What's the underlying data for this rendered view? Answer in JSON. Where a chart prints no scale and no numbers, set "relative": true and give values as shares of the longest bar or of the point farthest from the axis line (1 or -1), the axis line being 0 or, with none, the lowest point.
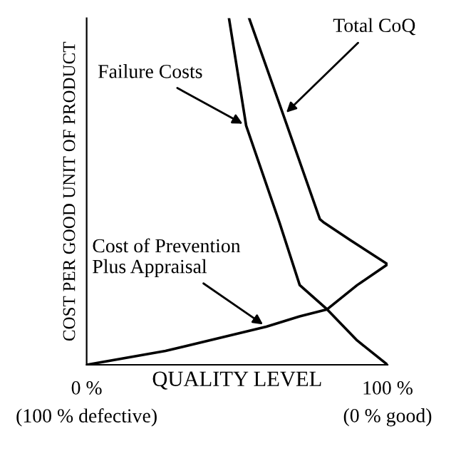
{
  "chart_data": {
    "type": "line",
    "relative": true,
    "xlabel": "QUALITY LEVEL",
    "ylabel": "COST PER GOOD UNIT OF PRODUCT",
    "xlim": [
      0,
      100
    ],
    "xticks": [
      {
        "value": 0,
        "label": "0 %"
      },
      {
        "value": 100,
        "label": "100 %"
      }
    ],
    "grid": false,
    "legend": false,
    "marker": "none",
    "line_style": "solid",
    "series": [
      {
        "color": "#000000",
        "x": [
          47.3,
          53.0,
          64.1,
          70.8,
          79.9,
          89.9,
          100
        ],
        "values": [
          1.0,
          0.69,
          0.41,
          0.23,
          0.16,
          0.07,
          0
        ]
      },
      {
        "color": "#000000",
        "x": [
          54.0,
          65.4,
          77.5,
          78.9,
          87.6,
          100
        ],
        "values": [
          1.0,
          0.72,
          0.42,
          0.41,
          0.36,
          0.29
        ]
      },
      {
        "color": "#000000",
        "x": [
          0,
          26.2,
          59.7,
          70.8,
          79.9,
          89.9,
          100
        ],
        "values": [
          0,
          0.04,
          0.11,
          0.14,
          0.16,
          0.23,
          0.29
        ]
      }
    ],
    "annotations": [
      {
        "text": "Failure Costs",
        "x": 53.0,
        "y": 0.69
      },
      {
        "text": "Total CoQ",
        "x": 65.4,
        "y": 0.72
      },
      {
        "text": "Cost of Prevention\nPlus Appraisal",
        "x": 59.7,
        "y": 0.11
      },
      "(100 % defective)",
      "(0 % good)"
    ]
  }
}
